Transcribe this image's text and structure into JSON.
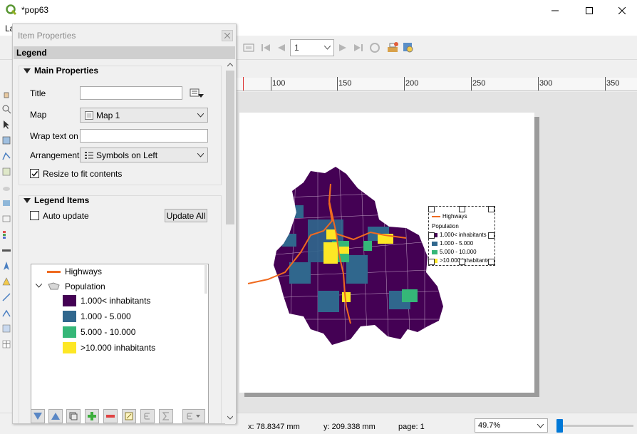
{
  "window": {
    "title": "*pop63",
    "menu_peek": "La"
  },
  "atlas_toolbar": {
    "page_value": "1"
  },
  "ruler": {
    "labels": [
      "100",
      "150",
      "200",
      "250",
      "300",
      "350"
    ]
  },
  "panel": {
    "title": "Item Properties",
    "header": "Legend",
    "main_properties": {
      "heading": "Main Properties",
      "title_label": "Title",
      "title_value": "",
      "map_label": "Map",
      "map_value": "Map 1",
      "wrap_label": "Wrap text on",
      "wrap_value": "",
      "arrangement_label": "Arrangement",
      "arrangement_value": "Symbols on Left",
      "resize_label": "Resize to fit contents",
      "resize_checked": true
    },
    "legend_items": {
      "heading": "Legend Items",
      "auto_update_label": "Auto update",
      "auto_update_checked": false,
      "update_all_label": "Update All",
      "tree": [
        {
          "label": "Highways",
          "type": "line",
          "color": "#ef6a1f"
        },
        {
          "label": "Population",
          "type": "group"
        },
        {
          "label": "1.000< inhabitants",
          "type": "fill",
          "color": "#440154"
        },
        {
          "label": "1.000 - 5.000",
          "type": "fill",
          "color": "#30678d"
        },
        {
          "label": "5.000 - 10.000",
          "type": "fill",
          "color": "#35b778"
        },
        {
          "label": ">10.000 inhabitants",
          "type": "fill",
          "color": "#fde725"
        }
      ]
    }
  },
  "map_legend": {
    "highways": "Highways",
    "population": "Population",
    "classes": [
      "1.000< inhabitants",
      "1.000 - 5.000",
      "5.000 - 10.000",
      ">10.000 inhabitants"
    ]
  },
  "status": {
    "x": "x: 78.8347 mm",
    "y": "y: 209.338 mm",
    "page": "page: 1",
    "zoom": "49.7%"
  },
  "colors": {
    "highways": "#ef6a1f",
    "class1": "#440154",
    "class2": "#30678d",
    "class3": "#35b778",
    "class4": "#fde725",
    "accent": "#0078d7"
  }
}
